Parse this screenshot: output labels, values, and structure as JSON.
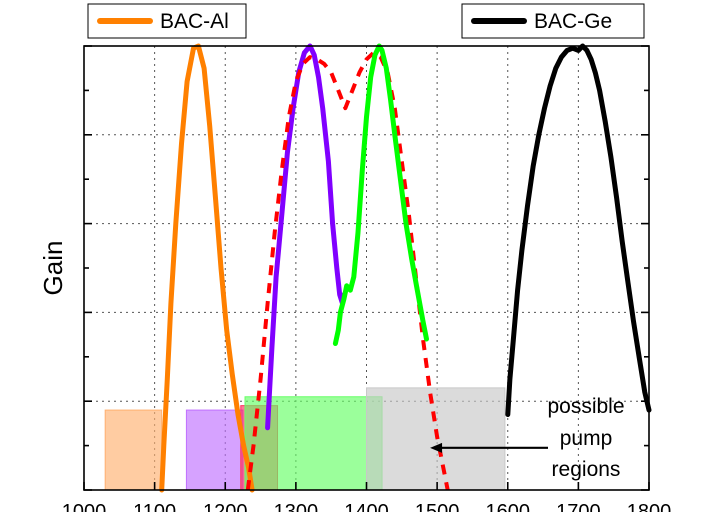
{
  "chart_data": {
    "type": "line",
    "title": "",
    "xlabel": "",
    "ylabel": "Gain",
    "xlim": [
      1000,
      1800
    ],
    "ylim": [
      0,
      1
    ],
    "x_ticks": [
      1000,
      1100,
      1200,
      1300,
      1400,
      1500,
      1600,
      1700,
      1800
    ],
    "x_tick_labels": [
      "1000",
      "1100",
      "1200",
      "1300",
      "1400",
      "1500",
      "1600",
      "1700",
      "1800"
    ],
    "grid": true,
    "legend": [
      {
        "name": "BAC-Al",
        "color": "#ff8000",
        "placement": "top-left"
      },
      {
        "name": "BAC-Ge",
        "color": "#000000",
        "placement": "top-right"
      }
    ],
    "series": [
      {
        "name": "BAC-Al",
        "color": "#ff8000",
        "dashed": false,
        "points": [
          [
            1110,
            0.0
          ],
          [
            1113,
            0.1
          ],
          [
            1118,
            0.25
          ],
          [
            1123,
            0.42
          ],
          [
            1130,
            0.6
          ],
          [
            1138,
            0.78
          ],
          [
            1146,
            0.92
          ],
          [
            1155,
            0.995
          ],
          [
            1162,
            1.0
          ],
          [
            1170,
            0.95
          ],
          [
            1178,
            0.82
          ],
          [
            1186,
            0.66
          ],
          [
            1194,
            0.5
          ],
          [
            1202,
            0.36
          ],
          [
            1210,
            0.26
          ],
          [
            1218,
            0.17
          ],
          [
            1226,
            0.1
          ],
          [
            1233,
            0.05
          ],
          [
            1238,
            0.0
          ]
        ]
      },
      {
        "name": "",
        "color": "#8000ff",
        "dashed": false,
        "points": [
          [
            1260,
            0.14
          ],
          [
            1262,
            0.2
          ],
          [
            1266,
            0.32
          ],
          [
            1272,
            0.48
          ],
          [
            1280,
            0.62
          ],
          [
            1288,
            0.76
          ],
          [
            1296,
            0.86
          ],
          [
            1304,
            0.94
          ],
          [
            1312,
            0.985
          ],
          [
            1320,
            1.0
          ],
          [
            1326,
            0.98
          ],
          [
            1332,
            0.93
          ],
          [
            1338,
            0.86
          ],
          [
            1346,
            0.74
          ],
          [
            1352,
            0.6
          ],
          [
            1358,
            0.5
          ],
          [
            1362,
            0.44
          ],
          [
            1366,
            0.42
          ],
          [
            1368,
            0.44
          ]
        ]
      },
      {
        "name": "",
        "color": "#ff0000",
        "dashed": true,
        "points": [
          [
            1232,
            0.0
          ],
          [
            1240,
            0.1
          ],
          [
            1250,
            0.25
          ],
          [
            1260,
            0.42
          ],
          [
            1270,
            0.58
          ],
          [
            1280,
            0.72
          ],
          [
            1290,
            0.84
          ],
          [
            1300,
            0.92
          ],
          [
            1310,
            0.96
          ],
          [
            1320,
            0.975
          ],
          [
            1330,
            0.97
          ],
          [
            1340,
            0.96
          ],
          [
            1350,
            0.94
          ],
          [
            1360,
            0.9
          ],
          [
            1370,
            0.86
          ],
          [
            1380,
            0.9
          ],
          [
            1390,
            0.94
          ],
          [
            1400,
            0.97
          ],
          [
            1410,
            0.985
          ],
          [
            1420,
            0.975
          ],
          [
            1430,
            0.94
          ],
          [
            1440,
            0.86
          ],
          [
            1450,
            0.74
          ],
          [
            1460,
            0.62
          ],
          [
            1470,
            0.48
          ],
          [
            1480,
            0.34
          ],
          [
            1490,
            0.22
          ],
          [
            1500,
            0.12
          ],
          [
            1510,
            0.04
          ],
          [
            1515,
            0.0
          ]
        ]
      },
      {
        "name": "",
        "color": "#00ff00",
        "dashed": false,
        "points": [
          [
            1356,
            0.33
          ],
          [
            1360,
            0.36
          ],
          [
            1363,
            0.4
          ],
          [
            1368,
            0.43
          ],
          [
            1372,
            0.46
          ],
          [
            1377,
            0.45
          ],
          [
            1382,
            0.48
          ],
          [
            1388,
            0.58
          ],
          [
            1394,
            0.72
          ],
          [
            1400,
            0.84
          ],
          [
            1406,
            0.93
          ],
          [
            1412,
            0.98
          ],
          [
            1418,
            1.0
          ],
          [
            1422,
            0.99
          ],
          [
            1428,
            0.95
          ],
          [
            1434,
            0.88
          ],
          [
            1440,
            0.8
          ],
          [
            1448,
            0.7
          ],
          [
            1456,
            0.6
          ],
          [
            1464,
            0.52
          ],
          [
            1472,
            0.45
          ],
          [
            1480,
            0.38
          ],
          [
            1485,
            0.34
          ]
        ]
      },
      {
        "name": "BAC-Ge",
        "color": "#000000",
        "dashed": false,
        "points": [
          [
            1600,
            0.17
          ],
          [
            1603,
            0.25
          ],
          [
            1608,
            0.34
          ],
          [
            1614,
            0.45
          ],
          [
            1620,
            0.54
          ],
          [
            1628,
            0.64
          ],
          [
            1636,
            0.73
          ],
          [
            1644,
            0.8
          ],
          [
            1652,
            0.86
          ],
          [
            1660,
            0.91
          ],
          [
            1668,
            0.95
          ],
          [
            1676,
            0.975
          ],
          [
            1684,
            0.99
          ],
          [
            1692,
            0.995
          ],
          [
            1700,
            0.99
          ],
          [
            1706,
            1.0
          ],
          [
            1712,
            0.99
          ],
          [
            1718,
            0.97
          ],
          [
            1724,
            0.94
          ],
          [
            1730,
            0.9
          ],
          [
            1738,
            0.83
          ],
          [
            1746,
            0.75
          ],
          [
            1754,
            0.66
          ],
          [
            1762,
            0.56
          ],
          [
            1770,
            0.47
          ],
          [
            1778,
            0.38
          ],
          [
            1786,
            0.3
          ],
          [
            1794,
            0.22
          ],
          [
            1800,
            0.18
          ]
        ]
      }
    ],
    "pump_regions": [
      {
        "x0": 1030,
        "x1": 1110,
        "y0": 0.0,
        "y1": 0.18,
        "color": "#ffb070"
      },
      {
        "x0": 1145,
        "x1": 1225,
        "y0": 0.0,
        "y1": 0.18,
        "color": "#c070ff"
      },
      {
        "x0": 1222,
        "x1": 1274,
        "y0": 0.0,
        "y1": 0.19,
        "color": "#ff3060"
      },
      {
        "x0": 1228,
        "x1": 1422,
        "y0": 0.0,
        "y1": 0.21,
        "color": "#66ff66"
      },
      {
        "x0": 1400,
        "x1": 1596,
        "y0": 0.0,
        "y1": 0.23,
        "color": "#c8c8c8"
      }
    ],
    "annotation": {
      "lines": [
        "possible",
        "pump",
        "regions"
      ],
      "arrow_to_x": 1490,
      "arrow_to_y": 0.095
    }
  }
}
